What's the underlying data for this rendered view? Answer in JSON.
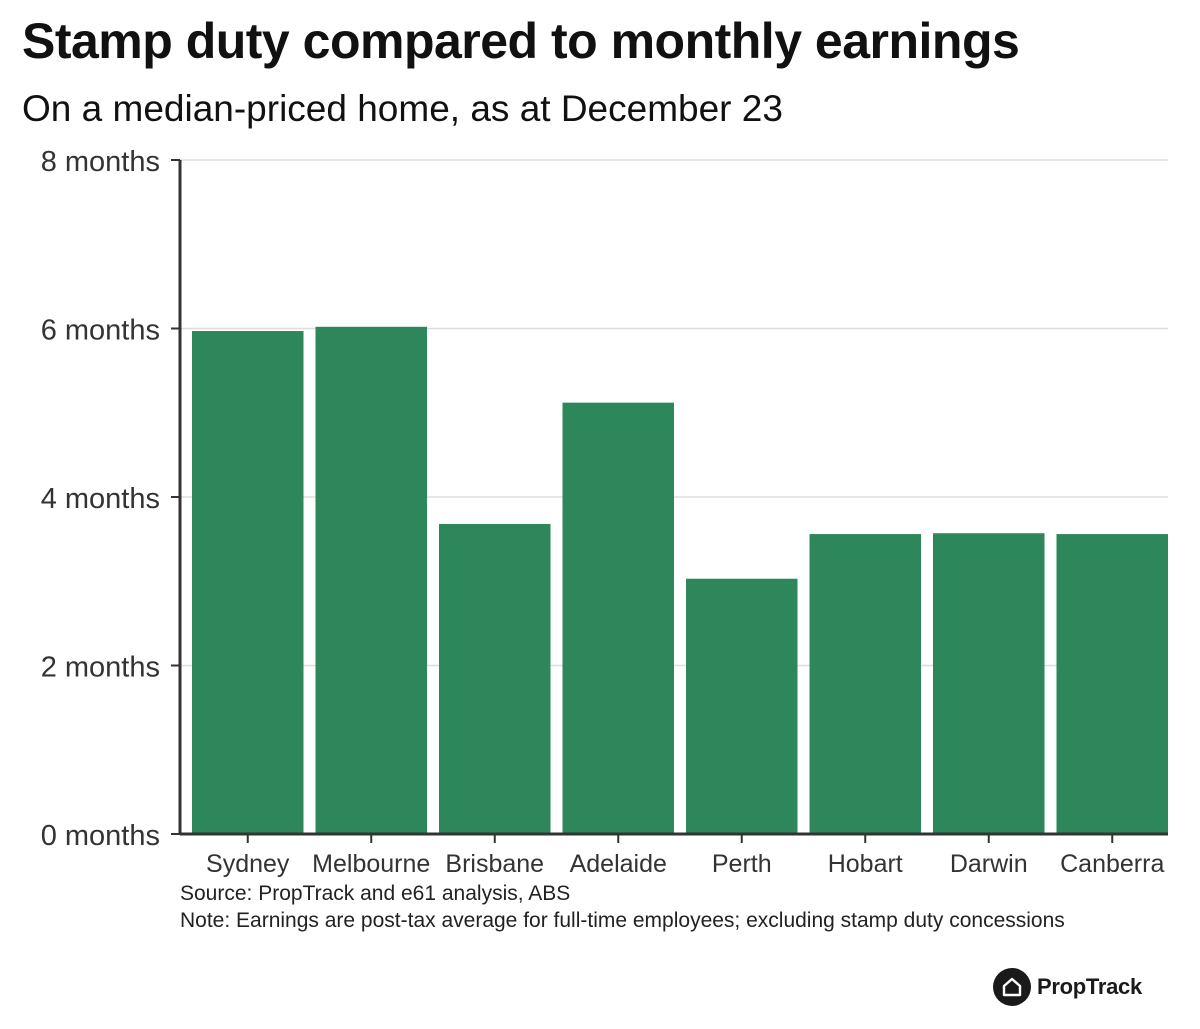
{
  "header": {
    "title": "Stamp duty compared to monthly earnings",
    "subtitle": "On a median-priced home, as at December 23"
  },
  "footer": {
    "source": "Source: PropTrack and e61 analysis, ABS",
    "note": "Note: Earnings are post-tax average for full-time employees; excluding stamp duty concessions"
  },
  "brand": {
    "name": "PropTrack"
  },
  "colors": {
    "bar": "#2e875a",
    "grid": "#dddddd",
    "axis": "#333333"
  },
  "chart_data": {
    "type": "bar",
    "title": "Stamp duty compared to monthly earnings",
    "subtitle": "On a median-priced home, as at December 23",
    "xlabel": "",
    "ylabel": "",
    "categories": [
      "Sydney",
      "Melbourne",
      "Brisbane",
      "Adelaide",
      "Perth",
      "Hobart",
      "Darwin",
      "Canberra"
    ],
    "values": [
      5.97,
      6.02,
      3.68,
      5.12,
      3.03,
      3.56,
      3.57,
      3.56
    ],
    "ylim": [
      0,
      8
    ],
    "yticks": [
      0,
      2,
      4,
      6,
      8
    ],
    "ytick_labels": [
      "0 months",
      "2 months",
      "4 months",
      "6 months",
      "8 months"
    ],
    "grid": true
  }
}
